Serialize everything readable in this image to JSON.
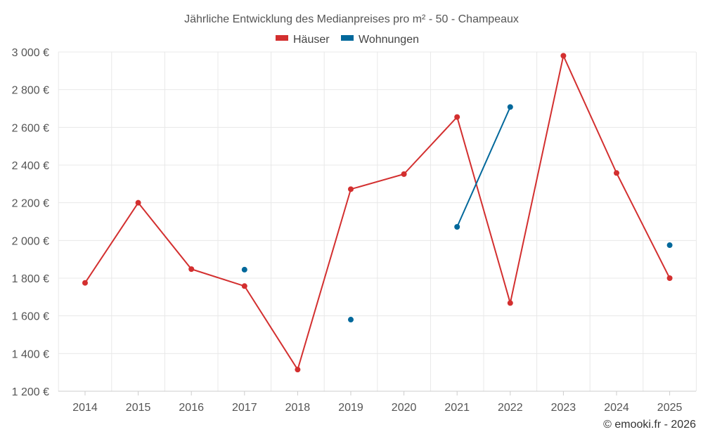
{
  "chart_data": {
    "type": "line",
    "title": "Jährliche Entwicklung des Medianpreises pro m² - 50 - Champeaux",
    "x": [
      "2014",
      "2015",
      "2016",
      "2017",
      "2018",
      "2019",
      "2020",
      "2021",
      "2022",
      "2023",
      "2024",
      "2025"
    ],
    "y_ticks": [
      "3 000 €",
      "2 800 €",
      "2 600 €",
      "2 400 €",
      "2 200 €",
      "2 000 €",
      "1 800 €",
      "1 600 €",
      "1 400 €",
      "1 200 €"
    ],
    "ylim": [
      1200,
      3000
    ],
    "grid": true,
    "legend_position": "top",
    "series": [
      {
        "name": "Häuser",
        "color": "#d32f2f",
        "values": [
          1775,
          2200,
          1848,
          1758,
          1315,
          2272,
          2352,
          2655,
          1668,
          2980,
          2358,
          1800
        ]
      },
      {
        "name": "Wohnungen",
        "color": "#01689b",
        "values": [
          null,
          null,
          null,
          1845,
          null,
          1580,
          null,
          2072,
          2708,
          null,
          null,
          1975
        ]
      }
    ]
  },
  "credit": "© emooki.fr - 2026"
}
